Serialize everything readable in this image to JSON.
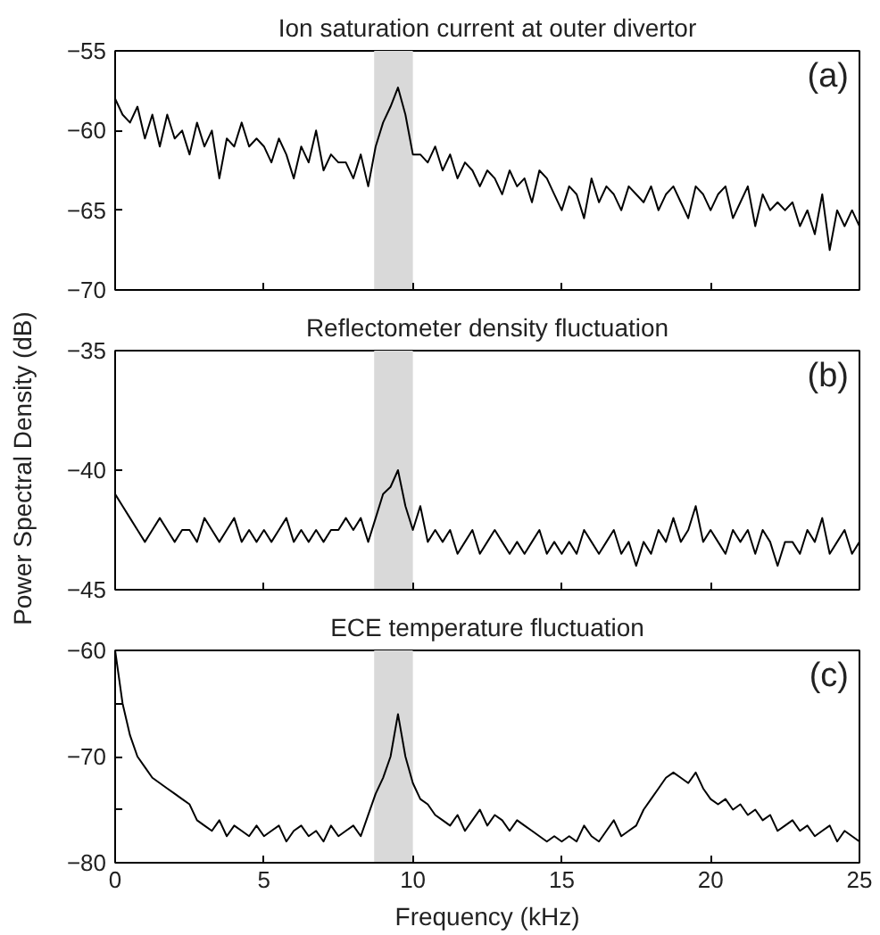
{
  "chart_data": [
    {
      "type": "line",
      "title": "Ion saturation current at outer divertor",
      "x": [
        0,
        0.25,
        0.5,
        0.75,
        1,
        1.25,
        1.5,
        1.75,
        2,
        2.25,
        2.5,
        2.75,
        3,
        3.25,
        3.5,
        3.75,
        4,
        4.25,
        4.5,
        4.75,
        5,
        5.25,
        5.5,
        5.75,
        6,
        6.25,
        6.5,
        6.75,
        7,
        7.25,
        7.5,
        7.75,
        8,
        8.25,
        8.5,
        8.75,
        9,
        9.25,
        9.5,
        9.75,
        10,
        10.25,
        10.5,
        10.75,
        11,
        11.25,
        11.5,
        11.75,
        12,
        12.25,
        12.5,
        12.75,
        13,
        13.25,
        13.5,
        13.75,
        14,
        14.25,
        14.5,
        14.75,
        15,
        15.25,
        15.5,
        15.75,
        16,
        16.25,
        16.5,
        16.75,
        17,
        17.25,
        17.5,
        17.75,
        18,
        18.25,
        18.5,
        18.75,
        19,
        19.25,
        19.5,
        19.75,
        20,
        20.25,
        20.5,
        20.75,
        21,
        21.25,
        21.5,
        21.75,
        22,
        22.25,
        22.5,
        22.75,
        23,
        23.25,
        23.5,
        23.75,
        24,
        24.25,
        24.5,
        24.75,
        25
      ],
      "series": [
        {
          "color": "#000000",
          "values": [
            -58,
            -59,
            -59.5,
            -58.5,
            -60.5,
            -59,
            -61,
            -59,
            -60.5,
            -60,
            -61.5,
            -59.5,
            -61,
            -60,
            -63,
            -60.5,
            -61,
            -59.5,
            -61,
            -60.5,
            -61,
            -62,
            -60.5,
            -61.5,
            -63,
            -61,
            -62,
            -60,
            -62.5,
            -61.5,
            -62,
            -62,
            -63,
            -61.5,
            -63.5,
            -61,
            -59.5,
            -58.5,
            -57.3,
            -59,
            -61.5,
            -61.5,
            -62,
            -61,
            -62.5,
            -61.5,
            -63,
            -62,
            -62.5,
            -63.5,
            -62.5,
            -63,
            -64,
            -62.5,
            -63.5,
            -63,
            -64.5,
            -62.5,
            -63,
            -64,
            -65,
            -63.5,
            -64,
            -65.5,
            -63,
            -64.5,
            -63.5,
            -64,
            -65,
            -63.5,
            -64,
            -64.5,
            -63.5,
            -65,
            -64,
            -63.5,
            -64.5,
            -65.5,
            -63.5,
            -64,
            -65,
            -64,
            -63.5,
            -65.5,
            -64.5,
            -63.5,
            -66,
            -64,
            -65,
            -64.5,
            -65,
            -64.5,
            -66,
            -65,
            -66.5,
            -64,
            -67.5,
            -65,
            -66,
            -65,
            -66
          ]
        }
      ],
      "xlim": [
        0,
        25
      ],
      "xticks": [
        {
          "value": 0,
          "label": null
        },
        {
          "value": 5,
          "label": null
        },
        {
          "value": 10,
          "label": null
        },
        {
          "value": 15,
          "label": null
        },
        {
          "value": 20,
          "label": null
        },
        {
          "value": 25,
          "label": null
        }
      ],
      "ylim": [
        -70,
        -55
      ],
      "yticks": [
        -70,
        -65,
        -60,
        -55
      ],
      "tick_labels": "y",
      "grid": false,
      "bands": [
        {
          "axis": "x",
          "from": 8.7,
          "to": 10,
          "color": "#d9d9d9"
        }
      ],
      "annotations": [
        "(a)"
      ]
    },
    {
      "type": "line",
      "title": "Reflectometer density fluctuation",
      "ylabel": "Power Spectral Density (dB)",
      "x": [
        0,
        0.25,
        0.5,
        0.75,
        1,
        1.25,
        1.5,
        1.75,
        2,
        2.25,
        2.5,
        2.75,
        3,
        3.25,
        3.5,
        3.75,
        4,
        4.25,
        4.5,
        4.75,
        5,
        5.25,
        5.5,
        5.75,
        6,
        6.25,
        6.5,
        6.75,
        7,
        7.25,
        7.5,
        7.75,
        8,
        8.25,
        8.5,
        8.75,
        9,
        9.25,
        9.5,
        9.75,
        10,
        10.25,
        10.5,
        10.75,
        11,
        11.25,
        11.5,
        11.75,
        12,
        12.25,
        12.5,
        12.75,
        13,
        13.25,
        13.5,
        13.75,
        14,
        14.25,
        14.5,
        14.75,
        15,
        15.25,
        15.5,
        15.75,
        16,
        16.25,
        16.5,
        16.75,
        17,
        17.25,
        17.5,
        17.75,
        18,
        18.25,
        18.5,
        18.75,
        19,
        19.25,
        19.5,
        19.75,
        20,
        20.25,
        20.5,
        20.75,
        21,
        21.25,
        21.5,
        21.75,
        22,
        22.25,
        22.5,
        22.75,
        23,
        23.25,
        23.5,
        23.75,
        24,
        24.25,
        24.5,
        24.75,
        25
      ],
      "series": [
        {
          "color": "#000000",
          "values": [
            -41,
            -41.5,
            -42,
            -42.5,
            -43,
            -42.5,
            -42,
            -42.5,
            -43,
            -42.5,
            -42.5,
            -43,
            -42,
            -42.5,
            -43,
            -42.5,
            -42,
            -43,
            -42.5,
            -43,
            -42.5,
            -43,
            -42.5,
            -42,
            -43,
            -42.5,
            -43,
            -42.5,
            -43,
            -42.5,
            -42.5,
            -42,
            -42.5,
            -42,
            -43,
            -42,
            -41,
            -40.7,
            -40,
            -41.5,
            -42.5,
            -41.5,
            -43,
            -42.5,
            -43,
            -42.5,
            -43.5,
            -43,
            -42.5,
            -43.5,
            -43,
            -42.5,
            -43,
            -43.5,
            -43,
            -43.5,
            -43,
            -42.5,
            -43.5,
            -43,
            -43.5,
            -43,
            -43.5,
            -42.5,
            -43,
            -43.5,
            -43,
            -42.5,
            -43.5,
            -43,
            -44,
            -43,
            -43.5,
            -42.5,
            -43,
            -42,
            -43,
            -42.5,
            -41.5,
            -43,
            -42.5,
            -43,
            -43.5,
            -42.5,
            -43,
            -42.5,
            -43.5,
            -42.5,
            -43,
            -44,
            -43,
            -43,
            -43.5,
            -42.5,
            -43,
            -42,
            -43.5,
            -43,
            -42.5,
            -43.5,
            -43
          ]
        }
      ],
      "xlim": [
        0,
        25
      ],
      "xticks": [
        {
          "value": 0,
          "label": null
        },
        {
          "value": 5,
          "label": null
        },
        {
          "value": 10,
          "label": null
        },
        {
          "value": 15,
          "label": null
        },
        {
          "value": 20,
          "label": null
        },
        {
          "value": 25,
          "label": null
        }
      ],
      "ylim": [
        -45,
        -35
      ],
      "yticks": [
        -45,
        -40,
        -35
      ],
      "tick_labels": "y",
      "grid": false,
      "bands": [
        {
          "axis": "x",
          "from": 8.7,
          "to": 10,
          "color": "#d9d9d9"
        }
      ],
      "annotations": [
        "(b)"
      ]
    },
    {
      "type": "line",
      "title": "ECE temperature fluctuation",
      "xlabel": "Frequency (kHz)",
      "x": [
        0,
        0.25,
        0.5,
        0.75,
        1,
        1.25,
        1.5,
        1.75,
        2,
        2.25,
        2.5,
        2.75,
        3,
        3.25,
        3.5,
        3.75,
        4,
        4.25,
        4.5,
        4.75,
        5,
        5.25,
        5.5,
        5.75,
        6,
        6.25,
        6.5,
        6.75,
        7,
        7.25,
        7.5,
        7.75,
        8,
        8.25,
        8.5,
        8.75,
        9,
        9.25,
        9.5,
        9.75,
        10,
        10.25,
        10.5,
        10.75,
        11,
        11.25,
        11.5,
        11.75,
        12,
        12.25,
        12.5,
        12.75,
        13,
        13.25,
        13.5,
        13.75,
        14,
        14.25,
        14.5,
        14.75,
        15,
        15.25,
        15.5,
        15.75,
        16,
        16.25,
        16.5,
        16.75,
        17,
        17.25,
        17.5,
        17.75,
        18,
        18.25,
        18.5,
        18.75,
        19,
        19.25,
        19.5,
        19.75,
        20,
        20.25,
        20.5,
        20.75,
        21,
        21.25,
        21.5,
        21.75,
        22,
        22.25,
        22.5,
        22.75,
        23,
        23.25,
        23.5,
        23.75,
        24,
        24.25,
        24.5,
        24.75,
        25
      ],
      "series": [
        {
          "color": "#000000",
          "values": [
            -60,
            -65,
            -68,
            -70,
            -71,
            -72,
            -72.5,
            -73,
            -73.5,
            -74,
            -74.5,
            -76,
            -76.5,
            -77,
            -76,
            -77.5,
            -76.5,
            -77,
            -77.5,
            -76.5,
            -77.5,
            -77,
            -76.5,
            -78,
            -77,
            -76.5,
            -77.5,
            -77,
            -78,
            -76.5,
            -77.5,
            -77,
            -76.5,
            -77.5,
            -75.5,
            -73.5,
            -72,
            -70,
            -66,
            -70,
            -72.5,
            -74,
            -74.5,
            -75.5,
            -76,
            -76.5,
            -75.5,
            -77,
            -76,
            -75,
            -76.5,
            -75.5,
            -76,
            -77,
            -76,
            -76.5,
            -77,
            -77.5,
            -78,
            -77.5,
            -78,
            -77.5,
            -78,
            -76.5,
            -77.5,
            -78,
            -77,
            -76,
            -77.5,
            -77,
            -76.5,
            -75,
            -74,
            -73,
            -72,
            -71.5,
            -72,
            -72.5,
            -71.5,
            -73,
            -74,
            -74.5,
            -74,
            -75,
            -74.5,
            -75.5,
            -75,
            -76,
            -75.5,
            -77,
            -76.5,
            -76,
            -77,
            -76.5,
            -77.5,
            -77,
            -76.5,
            -78,
            -77,
            -77.5,
            -78
          ]
        }
      ],
      "xlim": [
        0,
        25
      ],
      "xticks": [
        0,
        5,
        10,
        15,
        20,
        25
      ],
      "ylim": [
        -80,
        -60
      ],
      "yticks": [
        -80,
        {
          "value": -75,
          "label": null
        },
        -70,
        {
          "value": -65,
          "label": null
        },
        -60
      ],
      "grid": false,
      "bands": [
        {
          "axis": "x",
          "from": 8.7,
          "to": 10,
          "color": "#d9d9d9"
        }
      ],
      "annotations": [
        "(c)"
      ]
    }
  ]
}
